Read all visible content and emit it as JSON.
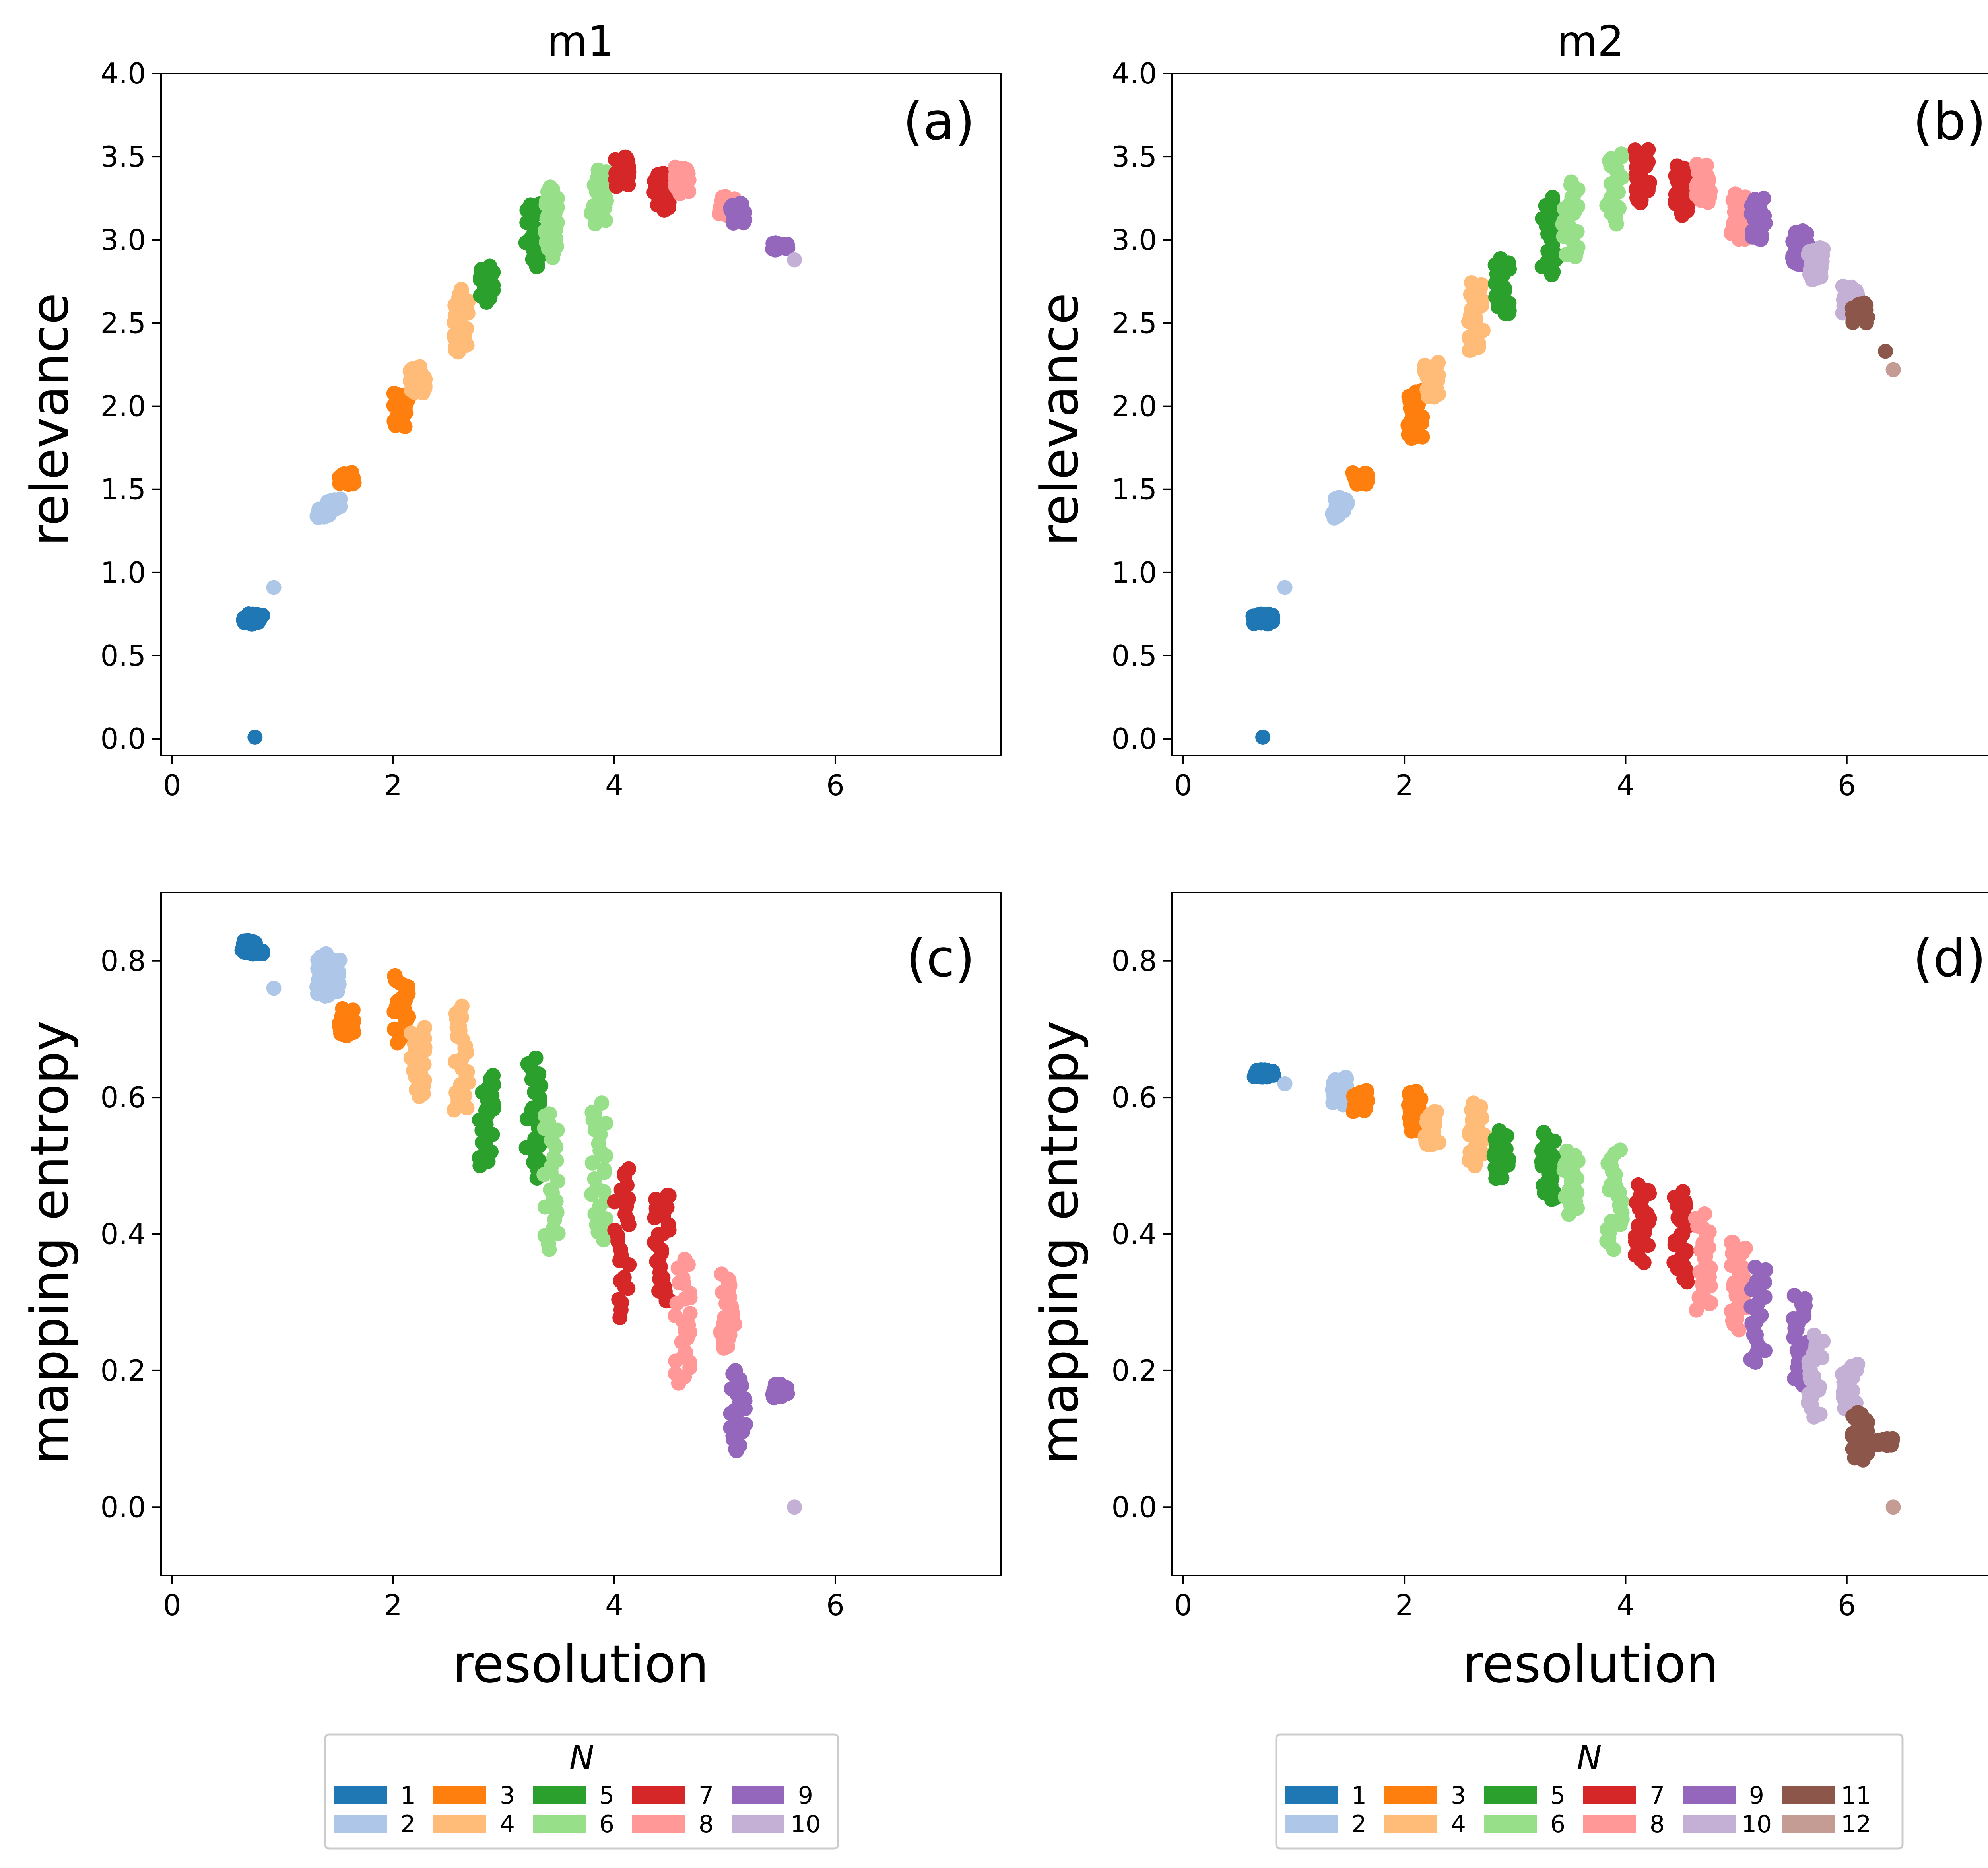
{
  "figure": {
    "panels": [
      {
        "id": "a",
        "title": "m1",
        "tag": "(a)",
        "ylabel": "relevance",
        "xlabel": "",
        "metric": "relevance",
        "model": "m1"
      },
      {
        "id": "b",
        "title": "m2",
        "tag": "(b)",
        "ylabel": "relevance",
        "xlabel": "",
        "metric": "relevance",
        "model": "m2"
      },
      {
        "id": "c",
        "title": "",
        "tag": "(c)",
        "ylabel": "mapping entropy",
        "xlabel": "resolution",
        "metric": "entropy",
        "model": "m1"
      },
      {
        "id": "d",
        "title": "",
        "tag": "(d)",
        "ylabel": "mapping entropy",
        "xlabel": "resolution",
        "metric": "entropy",
        "model": "m2"
      }
    ],
    "legends": [
      {
        "model": "m1",
        "title": "N",
        "entries": [
          "1",
          "2",
          "3",
          "4",
          "5",
          "6",
          "7",
          "8",
          "9",
          "10"
        ]
      },
      {
        "model": "m2",
        "title": "N",
        "entries": [
          "1",
          "2",
          "3",
          "4",
          "5",
          "6",
          "7",
          "8",
          "9",
          "10",
          "11",
          "12"
        ]
      }
    ]
  },
  "chart_data": {
    "type": "scatter",
    "xlim": [
      -0.1,
      7.5
    ],
    "xticks": [
      0,
      2,
      4,
      6
    ],
    "relevance_ylim": [
      -0.1,
      4.0
    ],
    "relevance_yticks": [
      "0.0",
      "0.5",
      "1.0",
      "1.5",
      "2.0",
      "2.5",
      "3.0",
      "3.5",
      "4.0"
    ],
    "entropy_ylim": [
      -0.1,
      0.9
    ],
    "entropy_yticks": [
      "0.0",
      "0.2",
      "0.4",
      "0.6",
      "0.8"
    ],
    "colors": {
      "1": "#1f77b4",
      "2": "#aec7e8",
      "3": "#ff7f0e",
      "4": "#ffbb78",
      "5": "#2ca02c",
      "6": "#98df8a",
      "7": "#d62728",
      "8": "#ff9896",
      "9": "#9467bd",
      "10": "#c5b0d5",
      "11": "#8c564b",
      "12": "#c49c94"
    },
    "series": {
      "m1": {
        "1": [
          {
            "x": 0.7,
            "rel": [
              0.69,
              0.75
            ],
            "ent": [
              0.81,
              0.83
            ]
          },
          {
            "x": 0.75,
            "rel": [
              0.7,
              0.75
            ],
            "ent": [
              0.81,
              0.82
            ]
          },
          {
            "x": 0.75,
            "rel": [
              0.01,
              0.01
            ],
            "ent": [
              0.82,
              0.82
            ]
          }
        ],
        "2": [
          {
            "x": 1.38,
            "rel": [
              1.33,
              1.38
            ],
            "ent": [
              0.75,
              0.81
            ]
          },
          {
            "x": 1.46,
            "rel": [
              1.38,
              1.44
            ],
            "ent": [
              0.75,
              0.8
            ]
          },
          {
            "x": 0.92,
            "rel": [
              0.91,
              0.91
            ],
            "ent": [
              0.76,
              0.76
            ]
          }
        ],
        "3": [
          {
            "x": 1.58,
            "rel": [
              1.53,
              1.6
            ],
            "ent": [
              0.69,
              0.73
            ]
          },
          {
            "x": 2.07,
            "rel": [
              1.88,
              2.08
            ],
            "ent": [
              0.68,
              0.78
            ]
          }
        ],
        "4": [
          {
            "x": 2.22,
            "rel": [
              2.08,
              2.24
            ],
            "ent": [
              0.6,
              0.7
            ]
          },
          {
            "x": 2.62,
            "rel": [
              2.33,
              2.7
            ],
            "ent": [
              0.58,
              0.73
            ]
          }
        ],
        "5": [
          {
            "x": 2.84,
            "rel": [
              2.63,
              2.84
            ],
            "ent": [
              0.5,
              0.63
            ]
          },
          {
            "x": 3.27,
            "rel": [
              2.83,
              3.22
            ],
            "ent": [
              0.48,
              0.66
            ]
          }
        ],
        "6": [
          {
            "x": 3.43,
            "rel": [
              2.9,
              3.32
            ],
            "ent": [
              0.38,
              0.58
            ]
          },
          {
            "x": 3.86,
            "rel": [
              3.1,
              3.42
            ],
            "ent": [
              0.39,
              0.59
            ]
          }
        ],
        "7": [
          {
            "x": 4.07,
            "rel": [
              3.32,
              3.5
            ],
            "ent": [
              0.28,
              0.5
            ]
          },
          {
            "x": 4.43,
            "rel": [
              3.18,
              3.4
            ],
            "ent": [
              0.3,
              0.46
            ]
          }
        ],
        "8": [
          {
            "x": 4.62,
            "rel": [
              3.28,
              3.44
            ],
            "ent": [
              0.18,
              0.36
            ]
          },
          {
            "x": 5.02,
            "rel": [
              3.15,
              3.26
            ],
            "ent": [
              0.23,
              0.34
            ]
          }
        ],
        "9": [
          {
            "x": 5.12,
            "rel": [
              3.1,
              3.22
            ],
            "ent": [
              0.08,
              0.2
            ]
          },
          {
            "x": 5.5,
            "rel": [
              2.94,
              2.98
            ],
            "ent": [
              0.16,
              0.18
            ]
          }
        ],
        "10": [
          {
            "x": 5.63,
            "rel": [
              2.88,
              2.88
            ],
            "ent": [
              0.0,
              0.0
            ]
          }
        ]
      },
      "m2": {
        "1": [
          {
            "x": 0.7,
            "rel": [
              0.69,
              0.75
            ],
            "ent": [
              0.63,
              0.64
            ]
          },
          {
            "x": 0.75,
            "rel": [
              0.7,
              0.75
            ],
            "ent": [
              0.63,
              0.64
            ]
          },
          {
            "x": 0.72,
            "rel": [
              0.01,
              0.01
            ],
            "ent": [
              0.63,
              0.63
            ]
          }
        ],
        "2": [
          {
            "x": 1.42,
            "rel": [
              1.33,
              1.45
            ],
            "ent": [
              0.59,
              0.63
            ]
          },
          {
            "x": 0.92,
            "rel": [
              0.91,
              0.91
            ],
            "ent": [
              0.62,
              0.62
            ]
          }
        ],
        "3": [
          {
            "x": 1.6,
            "rel": [
              1.53,
              1.6
            ],
            "ent": [
              0.58,
              0.61
            ]
          },
          {
            "x": 2.1,
            "rel": [
              1.8,
              2.1
            ],
            "ent": [
              0.55,
              0.61
            ]
          }
        ],
        "4": [
          {
            "x": 2.25,
            "rel": [
              2.05,
              2.26
            ],
            "ent": [
              0.53,
              0.58
            ]
          },
          {
            "x": 2.65,
            "rel": [
              2.33,
              2.75
            ],
            "ent": [
              0.5,
              0.59
            ]
          }
        ],
        "5": [
          {
            "x": 2.88,
            "rel": [
              2.55,
              2.88
            ],
            "ent": [
              0.48,
              0.55
            ]
          },
          {
            "x": 3.3,
            "rel": [
              2.8,
              3.25
            ],
            "ent": [
              0.45,
              0.55
            ]
          }
        ],
        "6": [
          {
            "x": 3.5,
            "rel": [
              2.9,
              3.35
            ],
            "ent": [
              0.43,
              0.52
            ]
          },
          {
            "x": 3.9,
            "rel": [
              3.1,
              3.52
            ],
            "ent": [
              0.38,
              0.52
            ]
          }
        ],
        "7": [
          {
            "x": 4.15,
            "rel": [
              3.22,
              3.55
            ],
            "ent": [
              0.36,
              0.47
            ]
          },
          {
            "x": 4.5,
            "rel": [
              3.15,
              3.45
            ],
            "ent": [
              0.33,
              0.46
            ]
          }
        ],
        "8": [
          {
            "x": 4.7,
            "rel": [
              3.22,
              3.46
            ],
            "ent": [
              0.29,
              0.43
            ]
          },
          {
            "x": 5.02,
            "rel": [
              3.0,
              3.28
            ],
            "ent": [
              0.26,
              0.39
            ]
          }
        ],
        "9": [
          {
            "x": 5.2,
            "rel": [
              3.0,
              3.25
            ],
            "ent": [
              0.21,
              0.35
            ]
          },
          {
            "x": 5.58,
            "rel": [
              2.85,
              3.05
            ],
            "ent": [
              0.18,
              0.31
            ]
          }
        ],
        "10": [
          {
            "x": 5.72,
            "rel": [
              2.76,
              2.95
            ],
            "ent": [
              0.13,
              0.25
            ]
          },
          {
            "x": 6.03,
            "rel": [
              2.55,
              2.72
            ],
            "ent": [
              0.14,
              0.21
            ]
          }
        ],
        "11": [
          {
            "x": 6.12,
            "rel": [
              2.5,
              2.62
            ],
            "ent": [
              0.07,
              0.14
            ]
          },
          {
            "x": 6.35,
            "rel": [
              2.33,
              2.33
            ],
            "ent": [
              0.09,
              0.1
            ]
          }
        ],
        "12": [
          {
            "x": 6.42,
            "rel": [
              2.22,
              2.22
            ],
            "ent": [
              0.0,
              0.0
            ]
          }
        ]
      }
    }
  }
}
